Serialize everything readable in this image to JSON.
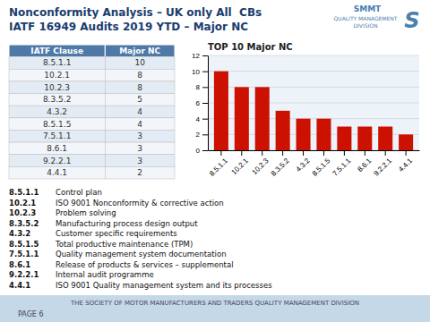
{
  "page": {
    "title_lines": [
      "Nonconformity Analysis – UK only All  CBs",
      "IATF 16949 Audits 2019 YTD – Major NC"
    ],
    "logo": [
      "SMMT",
      "QUALITY MANAGEMENT",
      "DIVISION",
      "S"
    ],
    "table": {
      "headers": [
        "IATF Clause",
        "Major NC"
      ],
      "rows": [
        [
          "8.5.1.1",
          10
        ],
        [
          "10.2.1",
          8
        ],
        [
          "10.2.3",
          8
        ],
        [
          "8.3.5.2",
          5
        ],
        [
          "4.3.2",
          4
        ],
        [
          "8.5.1.5",
          4
        ],
        [
          "7.5.1.1",
          3
        ],
        [
          "8.6.1",
          3
        ],
        [
          "9.2.2.1",
          3
        ],
        [
          "4.4.1",
          2
        ]
      ]
    },
    "notes": [
      [
        "8.5.1.1",
        "Control plan"
      ],
      [
        "10.2.1",
        "ISO 9001 Nonconformity & corrective action"
      ],
      [
        "10.2.3",
        "Problem solving"
      ],
      [
        "8.3.5.2",
        "Manufacturing process design output"
      ],
      [
        "4.3.2",
        "Customer specific requirements"
      ],
      [
        "8.5.1.5",
        "Total productive maintenance (TPM)"
      ],
      [
        "7.5.1.1",
        "Quality management system documentation"
      ],
      [
        "8.6.1",
        "Release of products & services – supplemental"
      ],
      [
        "9.2.2.1",
        "Internal audit programme"
      ],
      [
        "4.4.1",
        "ISO 9001 Quality management system and its processes"
      ]
    ],
    "footer": "THE SOCIETY OF MOTOR MANUFACTURERS AND TRADERS QUALITY MANAGEMENT DIVISION",
    "page_number": "PAGE 6"
  },
  "chart_data": {
    "type": "bar",
    "title": "TOP 10 Major NC",
    "categories": [
      "8.5.1.1",
      "10.2.1",
      "10.2.3",
      "8.3.5.2",
      "4.3.2",
      "8.5.1.5",
      "7.5.1.1",
      "8.6.1",
      "9.2.2.1",
      "4.4.1"
    ],
    "values": [
      10,
      8,
      8,
      5,
      4,
      4,
      3,
      3,
      3,
      2
    ],
    "color": "#cc1100",
    "ylim": [
      0,
      12
    ],
    "yticks": [
      0,
      2,
      4,
      6,
      8,
      10,
      12
    ],
    "grid": true
  }
}
